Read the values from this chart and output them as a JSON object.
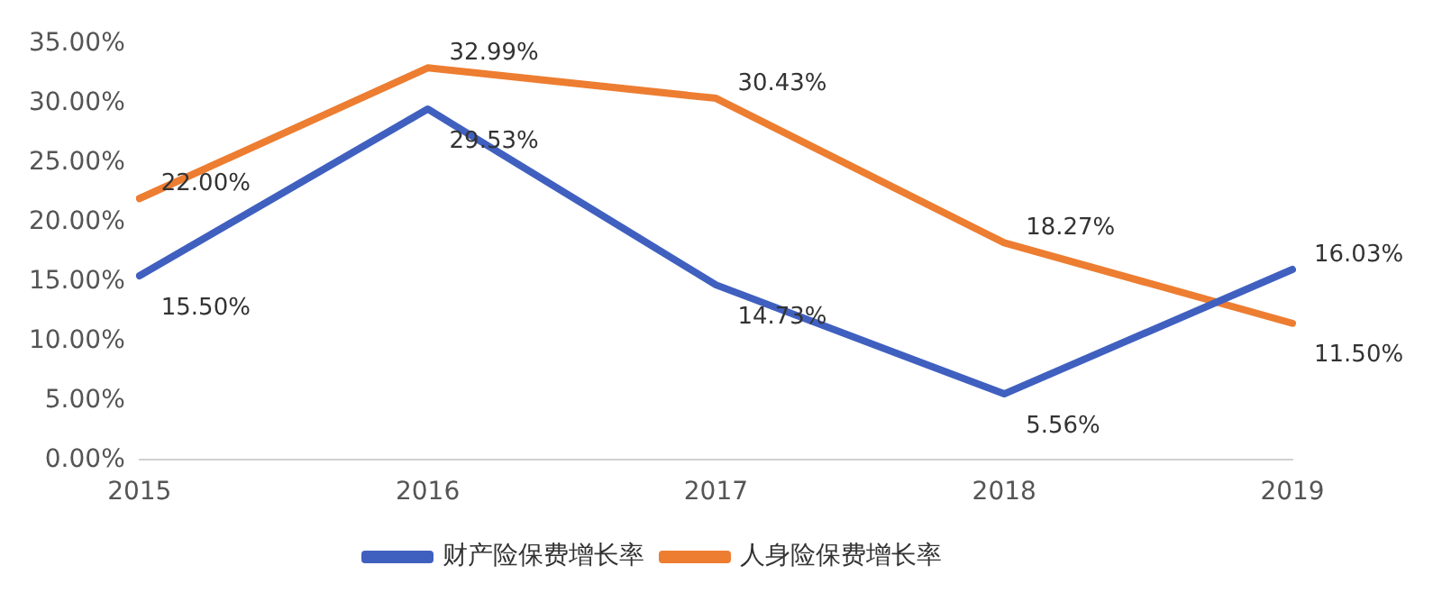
{
  "chart_data": {
    "type": "line",
    "categories": [
      "2015",
      "2016",
      "2017",
      "2018",
      "2019"
    ],
    "series": [
      {
        "name": "财产险保费增长率",
        "color": "#4060c0",
        "values": [
          15.5,
          29.53,
          14.73,
          5.56,
          16.03
        ],
        "value_labels": [
          "15.50%",
          "29.53%",
          "14.73%",
          "5.56%",
          "16.03%"
        ]
      },
      {
        "name": "人身险保费增长率",
        "color": "#ed7d31",
        "values": [
          22.0,
          32.99,
          30.43,
          18.27,
          11.5
        ],
        "value_labels": [
          "22.00%",
          "32.99%",
          "30.43%",
          "18.27%",
          "11.50%"
        ]
      }
    ],
    "ylim": [
      0,
      35
    ],
    "yticks": [
      {
        "value": 0,
        "label": "0.00%"
      },
      {
        "value": 5,
        "label": "5.00%"
      },
      {
        "value": 10,
        "label": "10.00%"
      },
      {
        "value": 15,
        "label": "15.00%"
      },
      {
        "value": 20,
        "label": "20.00%"
      },
      {
        "value": 25,
        "label": "25.00%"
      },
      {
        "value": 30,
        "label": "30.00%"
      },
      {
        "value": 35,
        "label": "35.00%"
      }
    ],
    "legend": "bottom",
    "marker": "none",
    "line_style": "solid"
  }
}
